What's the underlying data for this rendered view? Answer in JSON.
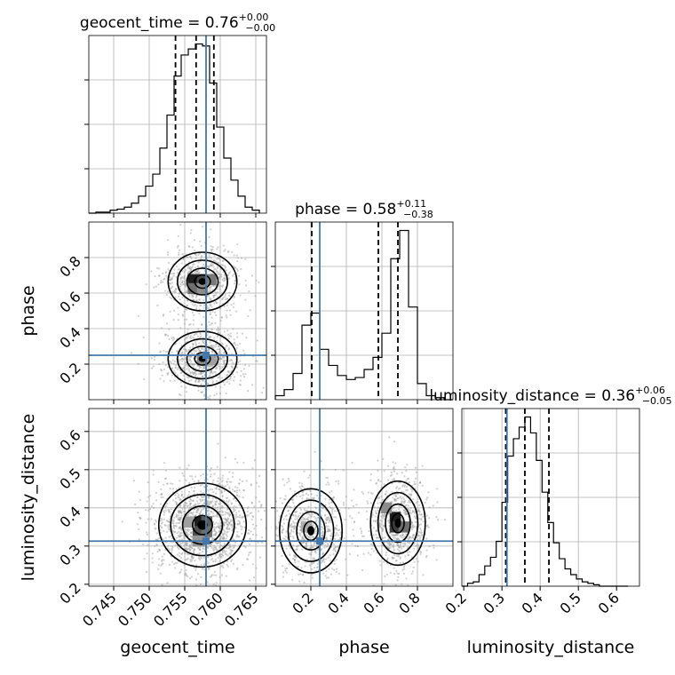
{
  "chart_data": {
    "type": "corner",
    "parameters": [
      "geocent_time",
      "phase",
      "luminosity_distance"
    ],
    "axis_labels": {
      "geocent_time": "geocent_time",
      "phase": "phase",
      "luminosity_distance": "luminosity_distance"
    },
    "ranges": {
      "geocent_time": [
        0.7415,
        0.7665
      ],
      "phase": [
        0.0,
        1.0
      ],
      "luminosity_distance": [
        0.195,
        0.66
      ]
    },
    "ticks": {
      "geocent_time": {
        "values": [
          0.745,
          0.75,
          0.755,
          0.76,
          0.765
        ],
        "labels": [
          "0.745",
          "0.750",
          "0.755",
          "0.760",
          "0.765"
        ]
      },
      "phase": {
        "values": [
          0.2,
          0.4,
          0.6,
          0.8
        ],
        "labels": [
          "0.2",
          "0.4",
          "0.6",
          "0.8"
        ]
      },
      "luminosity_distance": {
        "values": [
          0.2,
          0.3,
          0.4,
          0.5,
          0.6
        ],
        "labels": [
          "0.2",
          "0.3",
          "0.4",
          "0.5",
          "0.6"
        ]
      }
    },
    "truths": {
      "geocent_time": 0.758,
      "phase": 0.25,
      "luminosity_distance": 0.313
    },
    "titles": [
      {
        "param": "geocent_time",
        "base": "geocent_time = 0.76",
        "plus": "+0.00",
        "minus": "−0.00"
      },
      {
        "param": "phase",
        "base": "phase = 0.58",
        "plus": "+0.11",
        "minus": "−0.38"
      },
      {
        "param": "luminosity_distance",
        "base": "luminosity_distance = 0.36",
        "plus": "+0.06",
        "minus": "−0.05"
      }
    ],
    "histograms": {
      "geocent_time": {
        "edges": [
          0.7415,
          0.7425,
          0.7435,
          0.7445,
          0.7455,
          0.7465,
          0.7475,
          0.7485,
          0.7495,
          0.7505,
          0.7515,
          0.7525,
          0.7535,
          0.7545,
          0.7555,
          0.7565,
          0.7575,
          0.7585,
          0.7595,
          0.7605,
          0.7615,
          0.7625,
          0.7635,
          0.7645,
          0.7655
        ],
        "counts": [
          0,
          1,
          1,
          3,
          4,
          6,
          10,
          17,
          27,
          39,
          65,
          98,
          137,
          158,
          164,
          169,
          167,
          130,
          86,
          55,
          33,
          17,
          6,
          3
        ],
        "quantiles": [
          0.7537,
          0.7566,
          0.7591
        ]
      },
      "phase": {
        "edges": [
          0.0,
          0.05,
          0.1,
          0.15,
          0.2,
          0.25,
          0.3,
          0.35,
          0.4,
          0.45,
          0.5,
          0.55,
          0.6,
          0.65,
          0.7,
          0.75,
          0.8,
          0.85,
          0.9,
          0.95,
          1.0
        ],
        "counts": [
          2,
          5,
          13,
          37,
          43,
          25,
          17,
          12,
          10,
          11,
          15,
          21,
          33,
          70,
          84,
          46,
          8,
          2,
          1,
          0
        ],
        "quantiles": [
          0.205,
          0.58,
          0.69
        ]
      },
      "luminosity_distance": {
        "edges": [
          0.195,
          0.21,
          0.225,
          0.24,
          0.255,
          0.27,
          0.285,
          0.3,
          0.315,
          0.33,
          0.345,
          0.36,
          0.375,
          0.39,
          0.405,
          0.42,
          0.435,
          0.45,
          0.465,
          0.48,
          0.495,
          0.51,
          0.525,
          0.54,
          0.555,
          0.57,
          0.585,
          0.6,
          0.615,
          0.63
        ],
        "counts": [
          0,
          2,
          3,
          8,
          14,
          20,
          31,
          58,
          90,
          102,
          110,
          117,
          106,
          87,
          65,
          44,
          30,
          19,
          12,
          8,
          5,
          3,
          2,
          1,
          0,
          0,
          0,
          0,
          0
        ],
        "quantiles": [
          0.31,
          0.36,
          0.423
        ]
      }
    },
    "pairs": [
      {
        "x": "geocent_time",
        "y": "phase",
        "modes": [
          {
            "mx": 0.7575,
            "my": 0.665,
            "sx": 0.0022,
            "sy": 0.075
          },
          {
            "mx": 0.7575,
            "my": 0.23,
            "sx": 0.0022,
            "sy": 0.07
          }
        ],
        "cells": [
          {
            "x": 0.7562,
            "y": 0.675,
            "v": 1.0
          },
          {
            "x": 0.7575,
            "y": 0.675,
            "v": 0.8
          },
          {
            "x": 0.7587,
            "y": 0.675,
            "v": 0.55
          },
          {
            "x": 0.7562,
            "y": 0.625,
            "v": 0.6
          },
          {
            "x": 0.7575,
            "y": 0.625,
            "v": 0.45
          },
          {
            "x": 0.7575,
            "y": 0.225,
            "v": 0.45
          },
          {
            "x": 0.7587,
            "y": 0.225,
            "v": 0.35
          }
        ]
      },
      {
        "x": "geocent_time",
        "y": "luminosity_distance",
        "modes": [
          {
            "mx": 0.7575,
            "my": 0.355,
            "sx": 0.0028,
            "sy": 0.05
          }
        ],
        "cells": [
          {
            "x": 0.7569,
            "y": 0.363,
            "v": 1.0
          },
          {
            "x": 0.7581,
            "y": 0.363,
            "v": 0.7
          },
          {
            "x": 0.7569,
            "y": 0.338,
            "v": 0.75
          },
          {
            "x": 0.7581,
            "y": 0.338,
            "v": 0.6
          },
          {
            "x": 0.7556,
            "y": 0.363,
            "v": 0.35
          },
          {
            "x": 0.7569,
            "y": 0.313,
            "v": 0.4
          }
        ]
      },
      {
        "x": "phase",
        "y": "luminosity_distance",
        "modes": [
          {
            "mx": 0.69,
            "my": 0.36,
            "sx": 0.07,
            "sy": 0.05
          },
          {
            "mx": 0.2,
            "my": 0.34,
            "sx": 0.08,
            "sy": 0.05
          }
        ],
        "cells": [
          {
            "x": 0.675,
            "y": 0.375,
            "v": 1.0
          },
          {
            "x": 0.675,
            "y": 0.35,
            "v": 0.85
          },
          {
            "x": 0.725,
            "y": 0.35,
            "v": 0.6
          },
          {
            "x": 0.625,
            "y": 0.4,
            "v": 0.45
          },
          {
            "x": 0.175,
            "y": 0.35,
            "v": 0.3
          }
        ]
      }
    ],
    "colors": {
      "truth": "#4477aa",
      "hist": "#000000",
      "grid": "#b0b0b0",
      "scatter": "#999999"
    }
  }
}
